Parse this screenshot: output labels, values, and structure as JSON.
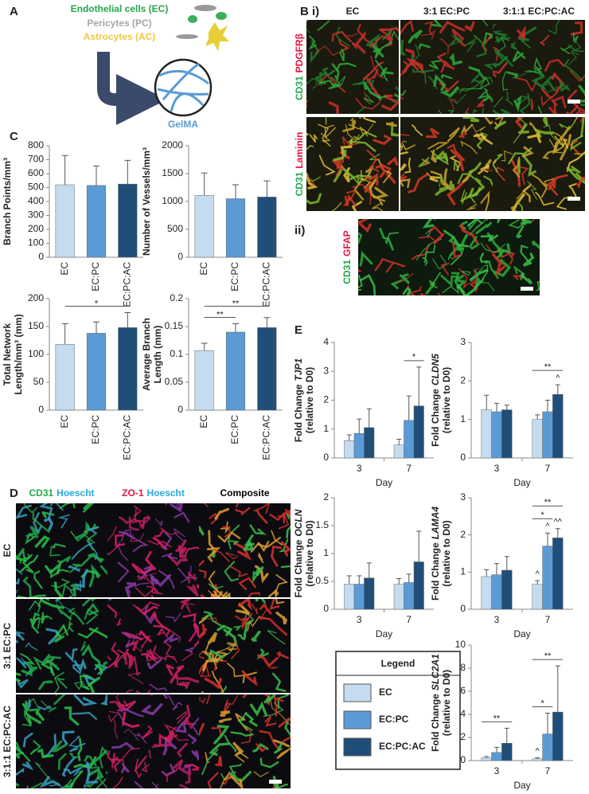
{
  "panel_a": {
    "label": "A",
    "cell_types": [
      "Endothelial cells (EC)",
      "Pericytes (PC)",
      "Astrocytes (AC)"
    ],
    "hydrogel": "GelMA"
  },
  "panel_b": {
    "label": "B",
    "sub_i": "i)",
    "columns": [
      "EC",
      "3:1 EC:PC",
      "3:1:1 EC:PC:AC"
    ],
    "rows": [
      [
        "CD31",
        "PDGFRβ"
      ],
      [
        "CD31",
        "Laminin"
      ]
    ],
    "sub_ii": "ii)",
    "ii_stain": [
      "CD31",
      "GFAP"
    ]
  },
  "panel_c_label": "C",
  "panel_d": {
    "label": "D",
    "columns": [
      [
        "CD31",
        "Hoescht"
      ],
      [
        "ZO-1",
        "Hoescht"
      ],
      [
        "Composite"
      ]
    ],
    "rows": [
      "EC",
      "3:1 EC:PC",
      "3:1:1 EC:PC:AC"
    ]
  },
  "panel_e_label": "E",
  "legend": {
    "title": "Legend",
    "entries": [
      {
        "name": "EC",
        "color": "#c5dcf0"
      },
      {
        "name": "EC:PC",
        "color": "#5b9bd5"
      },
      {
        "name": "EC:PC:AC",
        "color": "#1f4e79"
      }
    ]
  },
  "chart_data": [
    {
      "type": "bar",
      "y_label": [
        "Branch Points/mm³"
      ],
      "categories": [
        "EC",
        "EC:PC",
        "EC:PC:AC"
      ],
      "values": [
        520,
        515,
        525
      ],
      "errors": [
        210,
        140,
        170
      ],
      "colors": [
        "#c5dcf0",
        "#5b9bd5",
        "#1f4e79"
      ],
      "ylim": [
        0,
        800
      ],
      "yticks": [
        0,
        100,
        200,
        300,
        400,
        500,
        600,
        700,
        800
      ],
      "annotations": []
    },
    {
      "type": "bar",
      "y_label": [
        "Number of Vessels/mm³"
      ],
      "categories": [
        "EC",
        "EC:PC",
        "EC:PC:AC"
      ],
      "values": [
        1110,
        1050,
        1080
      ],
      "errors": [
        400,
        250,
        290
      ],
      "colors": [
        "#c5dcf0",
        "#5b9bd5",
        "#1f4e79"
      ],
      "ylim": [
        0,
        2000
      ],
      "yticks": [
        0,
        500,
        1000,
        1500,
        2000
      ],
      "annotations": []
    },
    {
      "type": "bar",
      "y_label": [
        "Total Network",
        "Length/mm³ (mm)"
      ],
      "categories": [
        "EC",
        "EC:PC",
        "EC:PC:AC"
      ],
      "values": [
        118,
        138,
        148
      ],
      "errors": [
        37,
        20,
        27
      ],
      "colors": [
        "#c5dcf0",
        "#5b9bd5",
        "#1f4e79"
      ],
      "ylim": [
        0,
        200
      ],
      "yticks": [
        0,
        50,
        100,
        150,
        200
      ],
      "annotations": [
        {
          "text": "*",
          "between": [
            "EC",
            "EC:PC:AC"
          ]
        }
      ]
    },
    {
      "type": "bar",
      "y_label": [
        "Average Branch",
        "Length (mm)"
      ],
      "categories": [
        "EC",
        "EC:PC",
        "EC:PC:AC"
      ],
      "values": [
        0.107,
        0.14,
        0.148
      ],
      "errors": [
        0.013,
        0.015,
        0.018
      ],
      "colors": [
        "#c5dcf0",
        "#5b9bd5",
        "#1f4e79"
      ],
      "ylim": [
        0,
        0.2
      ],
      "yticks": [
        0,
        0.05,
        0.1,
        0.15,
        0.2
      ],
      "annotations": [
        {
          "text": "**",
          "between": [
            "EC",
            "EC:PC"
          ]
        },
        {
          "text": "**",
          "between": [
            "EC",
            "EC:PC:AC"
          ]
        }
      ]
    },
    {
      "type": "grouped_bar",
      "y_label": {
        "text": "Fold Change",
        "gene": "TJP1",
        "note": "(relative to D0)"
      },
      "x_label": "Day",
      "categories": [
        "3",
        "7"
      ],
      "series": [
        {
          "color": "#c5dcf0",
          "values": [
            0.6,
            0.45
          ],
          "errors": [
            0.2,
            0.2
          ]
        },
        {
          "color": "#5b9bd5",
          "values": [
            0.85,
            1.3
          ],
          "errors": [
            0.5,
            0.85
          ]
        },
        {
          "color": "#1f4e79",
          "values": [
            1.05,
            1.8
          ],
          "errors": [
            0.65,
            1.35
          ]
        }
      ],
      "ylim": [
        0,
        4
      ],
      "yticks": [
        0,
        1,
        2,
        3,
        4
      ],
      "annotations": [
        {
          "text": "*",
          "category": "7",
          "between": [
            "EC:PC",
            "EC:PC:AC"
          ]
        }
      ]
    },
    {
      "type": "grouped_bar",
      "y_label": {
        "text": "Fold Change",
        "gene": "CLDN5",
        "note": "(relative to D0)"
      },
      "x_label": "Day",
      "categories": [
        "3",
        "7"
      ],
      "series": [
        {
          "color": "#c5dcf0",
          "values": [
            1.25,
            1.0
          ],
          "errors": [
            0.38,
            0.12
          ]
        },
        {
          "color": "#5b9bd5",
          "values": [
            1.2,
            1.2
          ],
          "errors": [
            0.22,
            0.3
          ]
        },
        {
          "color": "#1f4e79",
          "values": [
            1.25,
            1.65
          ],
          "errors": [
            0.12,
            0.25
          ]
        }
      ],
      "ylim": [
        0,
        3
      ],
      "yticks": [
        0,
        1,
        2,
        3
      ],
      "annotations": [
        {
          "text": "^",
          "category": "7",
          "over": "EC:PC:AC"
        },
        {
          "text": "**",
          "category": "7",
          "between": [
            "EC",
            "EC:PC:AC"
          ]
        }
      ]
    },
    {
      "type": "grouped_bar",
      "y_label": {
        "text": "Fold Change",
        "gene": "OCLN",
        "note": "(relative to D0)"
      },
      "x_label": "Day",
      "categories": [
        "3",
        "7"
      ],
      "series": [
        {
          "color": "#c5dcf0",
          "values": [
            0.45,
            0.45
          ],
          "errors": [
            0.15,
            0.1
          ]
        },
        {
          "color": "#5b9bd5",
          "values": [
            0.45,
            0.48
          ],
          "errors": [
            0.15,
            0.15
          ]
        },
        {
          "color": "#1f4e79",
          "values": [
            0.56,
            0.85
          ],
          "errors": [
            0.27,
            0.55
          ]
        }
      ],
      "ylim": [
        0,
        2
      ],
      "yticks": [
        0,
        0.5,
        1,
        1.5,
        2
      ],
      "annotations": []
    },
    {
      "type": "grouped_bar",
      "y_label": {
        "text": "Fold Change",
        "gene": "LAMA4",
        "note": "(relative to D0)"
      },
      "x_label": "Day",
      "categories": [
        "3",
        "7"
      ],
      "series": [
        {
          "color": "#c5dcf0",
          "values": [
            0.88,
            0.67
          ],
          "errors": [
            0.18,
            0.1
          ]
        },
        {
          "color": "#5b9bd5",
          "values": [
            0.93,
            1.7
          ],
          "errors": [
            0.3,
            0.35
          ]
        },
        {
          "color": "#1f4e79",
          "values": [
            1.05,
            1.92
          ],
          "errors": [
            0.37,
            0.25
          ]
        }
      ],
      "ylim": [
        0,
        3
      ],
      "yticks": [
        0,
        1,
        2,
        3
      ],
      "annotations": [
        {
          "text": "^",
          "category": "7",
          "over": "EC"
        },
        {
          "text": "^",
          "category": "7",
          "over": "EC:PC"
        },
        {
          "text": "^^",
          "category": "7",
          "over": "EC:PC:AC"
        },
        {
          "text": "*",
          "category": "7",
          "between": [
            "EC",
            "EC:PC"
          ]
        },
        {
          "text": "**",
          "category": "7",
          "between": [
            "EC",
            "EC:PC:AC"
          ]
        }
      ]
    },
    {
      "type": "grouped_bar",
      "y_label": {
        "text": "Fold Change",
        "gene": "SLC2A1",
        "note": "(relative to D0)"
      },
      "x_label": "Day",
      "categories": [
        "3",
        "7"
      ],
      "series": [
        {
          "color": "#c5dcf0",
          "values": [
            0.25,
            0.15
          ],
          "errors": [
            0.1,
            0.1
          ]
        },
        {
          "color": "#5b9bd5",
          "values": [
            0.7,
            2.3
          ],
          "errors": [
            0.45,
            1.8
          ]
        },
        {
          "color": "#1f4e79",
          "values": [
            1.5,
            4.2
          ],
          "errors": [
            1.3,
            4.0
          ]
        }
      ],
      "ylim": [
        0,
        10
      ],
      "yticks": [
        0,
        2,
        4,
        6,
        8,
        10
      ],
      "annotations": [
        {
          "text": "^",
          "category": "7",
          "over": "EC"
        },
        {
          "text": "**",
          "category": "3",
          "between": [
            "EC",
            "EC:PC:AC"
          ]
        },
        {
          "text": "*",
          "category": "7",
          "between": [
            "EC",
            "EC:PC"
          ]
        },
        {
          "text": "**",
          "category": "7",
          "between": [
            "EC",
            "EC:PC:AC"
          ]
        }
      ]
    }
  ]
}
